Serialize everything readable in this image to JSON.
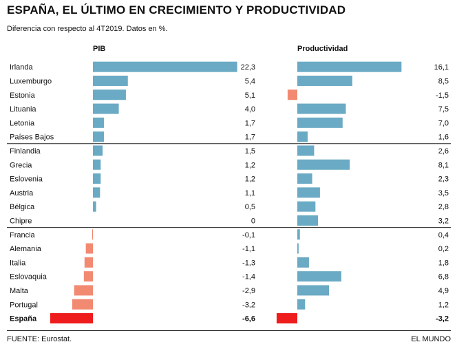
{
  "header": {
    "title": "ESPAÑA, EL ÚLTIMO EN CRECIMIENTO Y PRODUCTIVIDAD",
    "subtitle": "Diferencia con respecto al 4T2019. Datos en %."
  },
  "footer": {
    "source": "FUENTE: Eurostat.",
    "brand": "EL MUNDO"
  },
  "colors": {
    "positive": "#6aaac4",
    "negative": "#f28a72",
    "highlight": "#ee1c1c",
    "text": "#111111",
    "rule": "#222222"
  },
  "chart_data": {
    "type": "bar",
    "orientation": "horizontal",
    "categories": [
      "Irlanda",
      "Luxemburgo",
      "Estonia",
      "Lituania",
      "Letonia",
      "Países Bajos",
      "Finlandia",
      "Grecia",
      "Eslovenia",
      "Austria",
      "Bélgica",
      "Chipre",
      "Francia",
      "Alemania",
      "Italia",
      "Eslovaquia",
      "Malta",
      "Portugal",
      "España"
    ],
    "highlight_category": "España",
    "group_breaks_after": [
      "Países Bajos",
      "Chipre"
    ],
    "series": [
      {
        "name": "PIB",
        "values": [
          22.3,
          5.4,
          5.1,
          4.0,
          1.7,
          1.7,
          1.5,
          1.2,
          1.2,
          1.1,
          0.5,
          0,
          -0.1,
          -1.1,
          -1.3,
          -1.4,
          -2.9,
          -3.2,
          -6.6
        ],
        "labels": [
          "22,3",
          "5,4",
          "5,1",
          "4,0",
          "1,7",
          "1,7",
          "1,5",
          "1,2",
          "1,2",
          "1,1",
          "0,5",
          "0",
          "-0,1",
          "-1,1",
          "-1,3",
          "-1,4",
          "-2,9",
          "-3,2",
          "-6,6"
        ]
      },
      {
        "name": "Productividad",
        "values": [
          16.1,
          8.5,
          -1.5,
          7.5,
          7.0,
          1.6,
          2.6,
          8.1,
          2.3,
          3.5,
          2.8,
          3.2,
          0.4,
          0.2,
          1.8,
          6.8,
          4.9,
          1.2,
          -3.2
        ],
        "labels": [
          "16,1",
          "8,5",
          "-1,5",
          "7,5",
          "7,0",
          "1,6",
          "2,6",
          "8,1",
          "2,3",
          "3,5",
          "2,8",
          "3,2",
          "0,4",
          "0,2",
          "1,8",
          "6,8",
          "4,9",
          "1,2",
          "-3,2"
        ]
      }
    ]
  }
}
